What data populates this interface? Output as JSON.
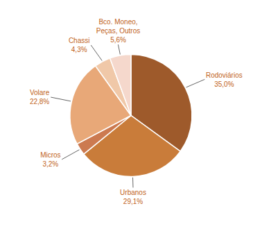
{
  "chart_data": {
    "type": "pie",
    "categories": [
      "Rodoviários",
      "Urbanos",
      "Micros",
      "Volare",
      "Chassi",
      "Bco. Moneo,\nPeças, Outros"
    ],
    "values": [
      35.0,
      29.1,
      3.2,
      22.8,
      4.3,
      5.6
    ],
    "value_labels": [
      "35,0%",
      "29,1%",
      "3,2%",
      "22,8%",
      "4,3%",
      "5,6%"
    ],
    "data_labels": true,
    "colors": [
      "#9e5a2b",
      "#c97c3a",
      "#cc7a50",
      "#e8a878",
      "#f0c8a8",
      "#f5d8cc"
    ]
  }
}
